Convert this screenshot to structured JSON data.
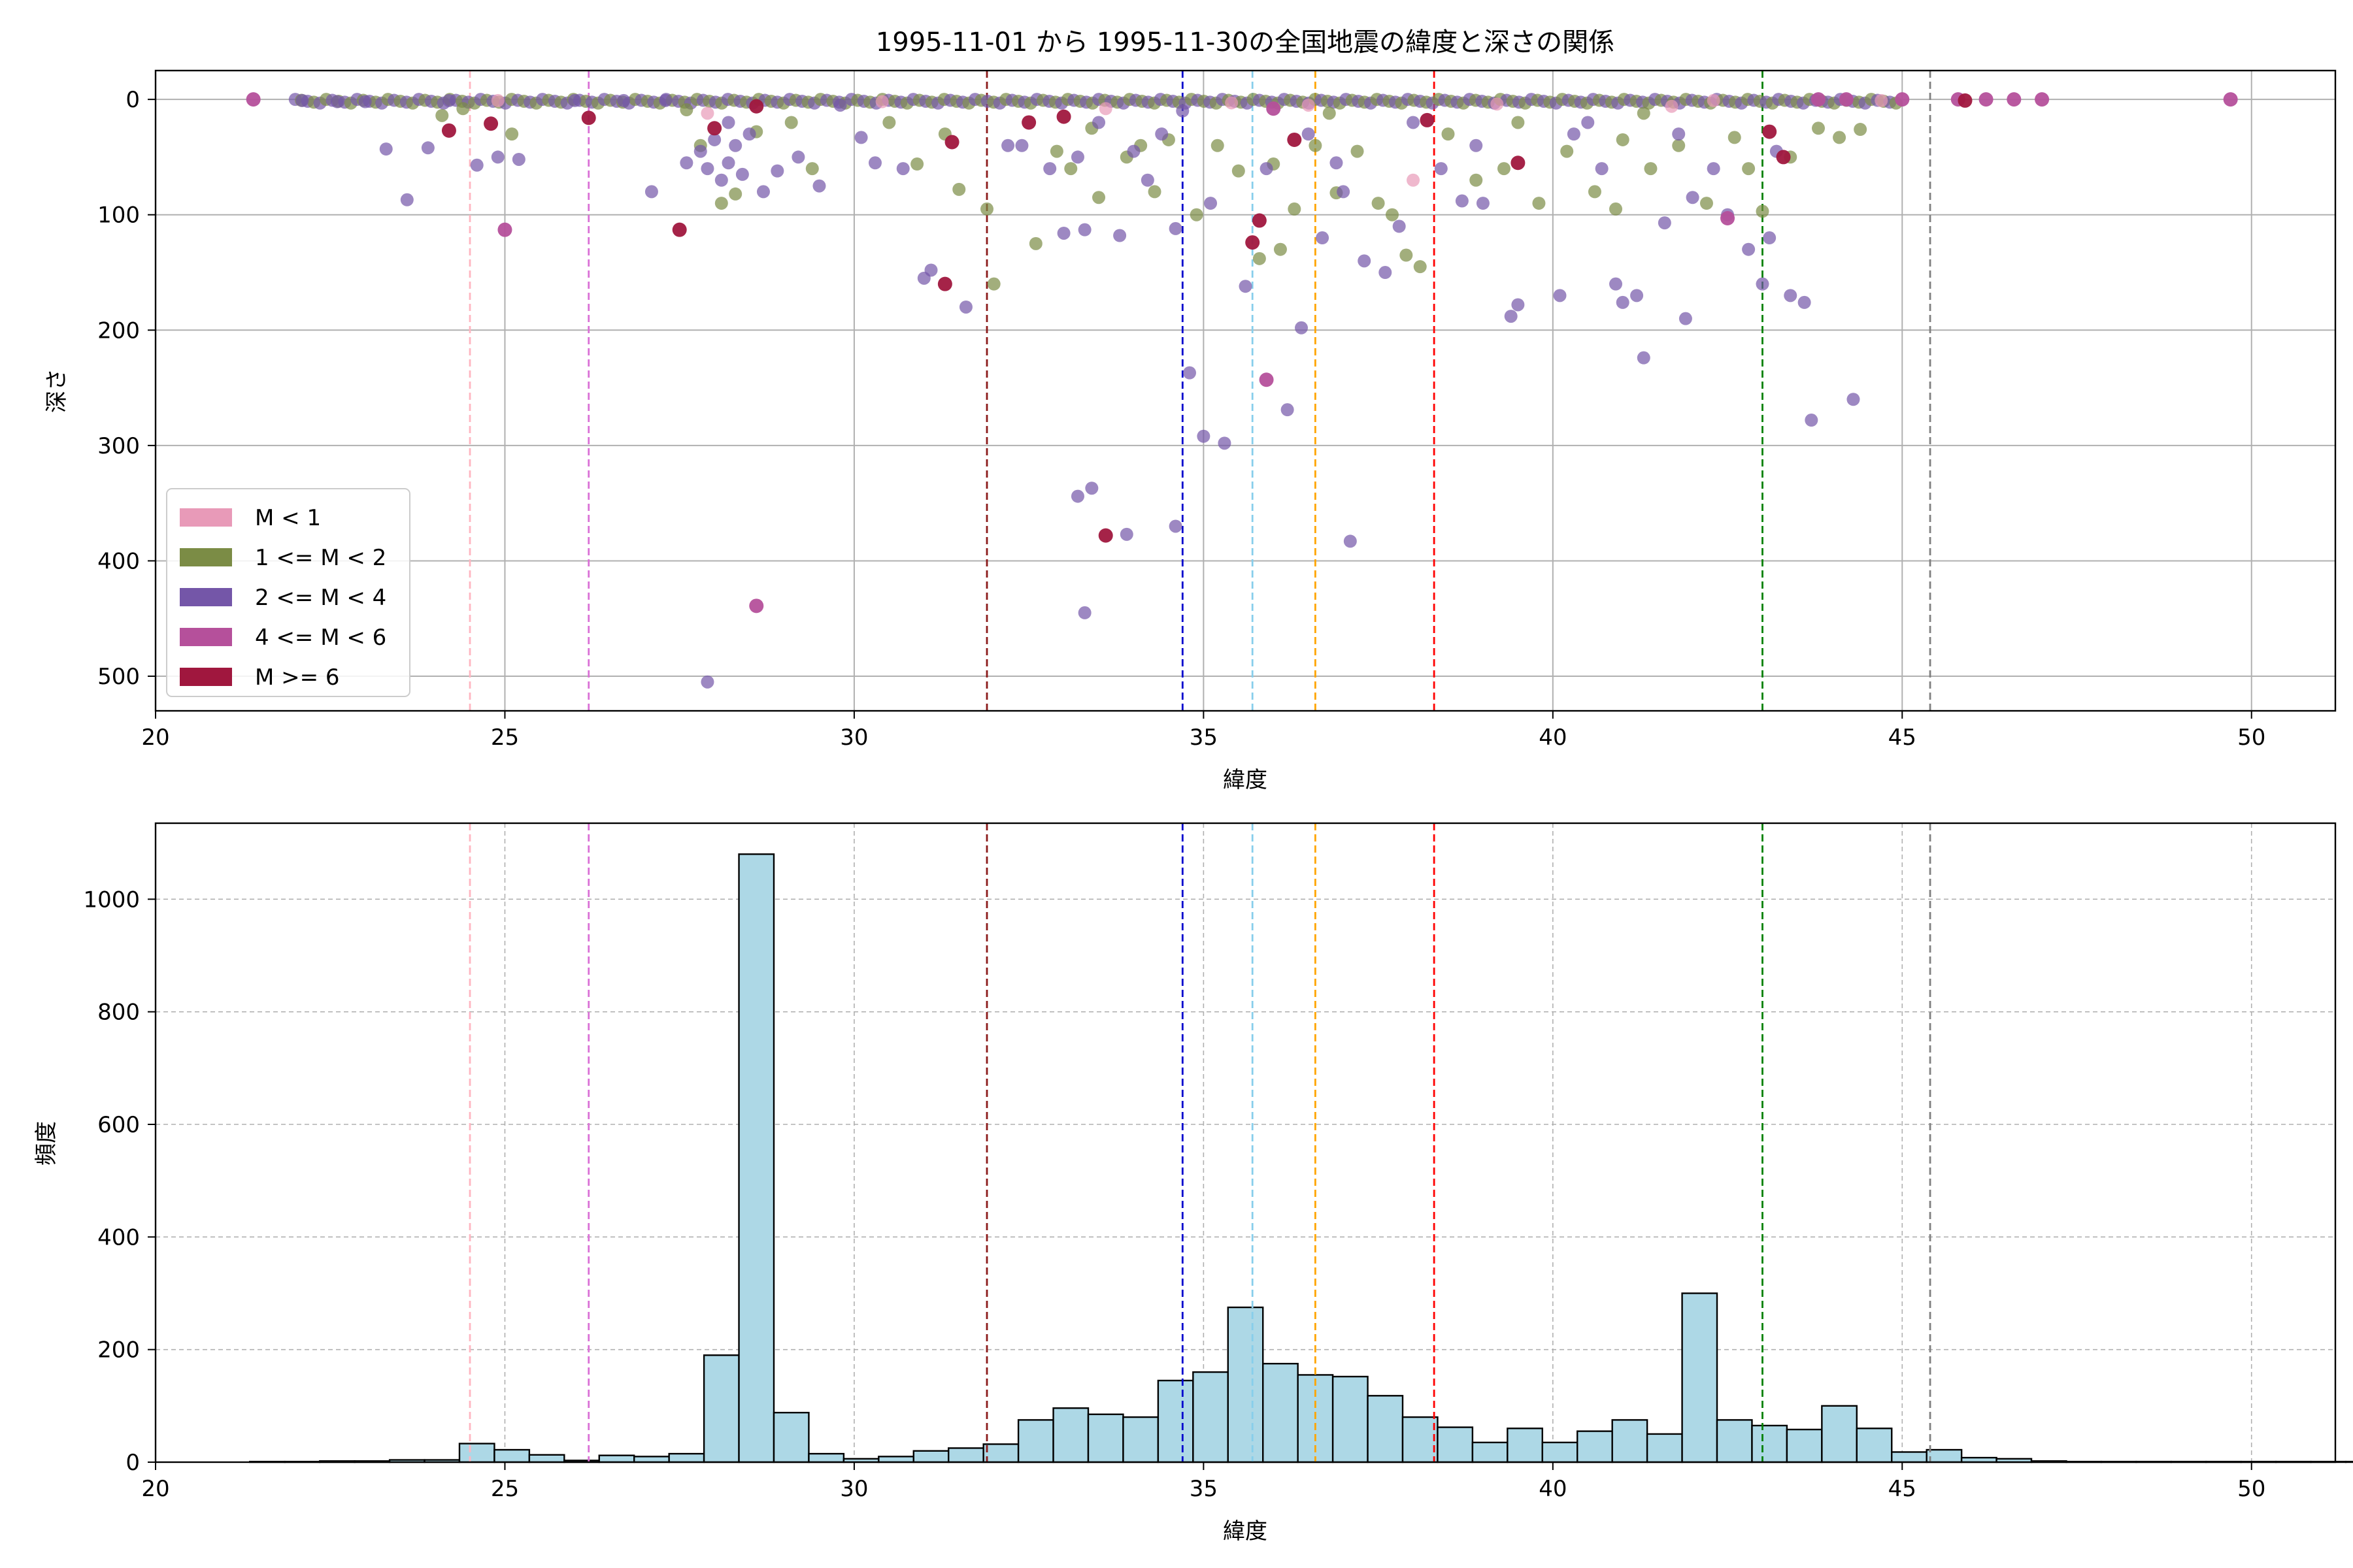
{
  "chart_data": [
    {
      "type": "scatter",
      "title": "1995-11-01 から 1995-11-30の全国地震の緯度と深さの関係",
      "xlabel": "緯度",
      "ylabel": "深さ",
      "xlim": [
        20,
        51.2
      ],
      "ylim": [
        530,
        -25
      ],
      "y_inverted": true,
      "xticks": [
        20,
        25,
        30,
        35,
        40,
        45,
        50
      ],
      "yticks": [
        0,
        100,
        200,
        300,
        400,
        500
      ],
      "grid": true,
      "legend_position": "lower-left",
      "legend": [
        {
          "label": "M < 1",
          "color": "#e89ab8"
        },
        {
          "label": "1 <= M < 2",
          "color": "#7b8c45"
        },
        {
          "label": "2 <= M < 4",
          "color": "#7456a8"
        },
        {
          "label": "4 <= M < 6",
          "color": "#b5509b"
        },
        {
          "label": "M >= 6",
          "color": "#a0173e"
        }
      ],
      "reference_lines_x": [
        {
          "x": 24.5,
          "color": "#ffb6c1"
        },
        {
          "x": 26.2,
          "color": "#da70d6"
        },
        {
          "x": 31.9,
          "color": "#8b1a1a"
        },
        {
          "x": 34.7,
          "color": "#0000cd"
        },
        {
          "x": 35.7,
          "color": "#87ceeb"
        },
        {
          "x": 36.6,
          "color": "#ffa500"
        },
        {
          "x": 38.3,
          "color": "#ff0000"
        },
        {
          "x": 43.0,
          "color": "#008000"
        },
        {
          "x": 45.4,
          "color": "#808080"
        }
      ],
      "series": [
        {
          "class": 0,
          "points": [
            [
              24.9,
              1
            ],
            [
              27.9,
              12
            ],
            [
              33.6,
              8
            ],
            [
              35.4,
              3
            ],
            [
              38.0,
              70
            ],
            [
              39.2,
              4
            ],
            [
              41.7,
              6
            ],
            [
              42.3,
              1
            ],
            [
              44.7,
              1
            ],
            [
              36.5,
              5
            ],
            [
              30.4,
              2
            ]
          ]
        },
        {
          "class": 1,
          "points": [
            [
              24.1,
              14
            ],
            [
              24.4,
              8
            ],
            [
              25.1,
              30
            ],
            [
              27.6,
              9
            ],
            [
              27.8,
              40
            ],
            [
              28.1,
              90
            ],
            [
              28.3,
              82
            ],
            [
              28.6,
              28
            ],
            [
              29.1,
              20
            ],
            [
              30.5,
              20
            ],
            [
              30.9,
              56
            ],
            [
              31.3,
              30
            ],
            [
              31.9,
              95
            ],
            [
              32.0,
              160
            ],
            [
              32.6,
              125
            ],
            [
              32.9,
              45
            ],
            [
              33.1,
              60
            ],
            [
              33.4,
              25
            ],
            [
              33.9,
              50
            ],
            [
              34.1,
              40
            ],
            [
              34.5,
              35
            ],
            [
              34.9,
              100
            ],
            [
              35.2,
              40
            ],
            [
              35.5,
              62
            ],
            [
              35.8,
              138
            ],
            [
              36.0,
              56
            ],
            [
              36.3,
              95
            ],
            [
              36.6,
              40
            ],
            [
              36.9,
              81
            ],
            [
              37.2,
              45
            ],
            [
              37.5,
              90
            ],
            [
              37.9,
              135
            ],
            [
              38.1,
              145
            ],
            [
              38.5,
              30
            ],
            [
              38.9,
              70
            ],
            [
              39.3,
              60
            ],
            [
              39.8,
              90
            ],
            [
              40.2,
              45
            ],
            [
              40.6,
              80
            ],
            [
              41.0,
              35
            ],
            [
              41.4,
              60
            ],
            [
              41.8,
              40
            ],
            [
              42.2,
              90
            ],
            [
              42.6,
              33
            ],
            [
              43.0,
              97
            ],
            [
              43.4,
              50
            ],
            [
              43.8,
              25
            ],
            [
              44.1,
              33
            ],
            [
              44.4,
              26
            ],
            [
              34.3,
              80
            ],
            [
              36.1,
              130
            ],
            [
              37.7,
              100
            ],
            [
              40.9,
              95
            ],
            [
              42.8,
              60
            ],
            [
              33.5,
              85
            ],
            [
              36.8,
              12
            ],
            [
              39.5,
              20
            ],
            [
              41.3,
              12
            ],
            [
              29.4,
              60
            ],
            [
              31.5,
              78
            ]
          ]
        },
        {
          "class": 2,
          "points": [
            [
              22.1,
              1
            ],
            [
              22.6,
              2
            ],
            [
              23.0,
              2
            ],
            [
              23.3,
              43
            ],
            [
              23.6,
              87
            ],
            [
              23.9,
              42
            ],
            [
              24.2,
              1
            ],
            [
              24.6,
              57
            ],
            [
              24.9,
              50
            ],
            [
              25.2,
              52
            ],
            [
              26.0,
              1
            ],
            [
              26.7,
              1
            ],
            [
              27.1,
              80
            ],
            [
              27.3,
              1
            ],
            [
              27.6,
              55
            ],
            [
              27.8,
              45
            ],
            [
              27.9,
              60
            ],
            [
              28.0,
              35
            ],
            [
              28.1,
              70
            ],
            [
              28.2,
              55
            ],
            [
              28.3,
              40
            ],
            [
              28.4,
              65
            ],
            [
              28.5,
              30
            ],
            [
              28.7,
              80
            ],
            [
              28.9,
              62
            ],
            [
              29.2,
              50
            ],
            [
              29.5,
              75
            ],
            [
              29.8,
              5
            ],
            [
              30.1,
              33
            ],
            [
              30.3,
              55
            ],
            [
              30.7,
              60
            ],
            [
              31.0,
              155
            ],
            [
              31.1,
              148
            ],
            [
              31.6,
              180
            ],
            [
              32.2,
              40
            ],
            [
              32.8,
              60
            ],
            [
              33.0,
              116
            ],
            [
              33.2,
              50
            ],
            [
              33.3,
              113
            ],
            [
              33.5,
              20
            ],
            [
              33.8,
              118
            ],
            [
              34.0,
              45
            ],
            [
              34.2,
              70
            ],
            [
              34.4,
              30
            ],
            [
              34.6,
              112
            ],
            [
              34.8,
              237
            ],
            [
              35.0,
              292
            ],
            [
              35.3,
              298
            ],
            [
              35.6,
              162
            ],
            [
              35.9,
              60
            ],
            [
              36.2,
              269
            ],
            [
              36.4,
              198
            ],
            [
              36.5,
              30
            ],
            [
              36.7,
              120
            ],
            [
              37.0,
              80
            ],
            [
              37.1,
              383
            ],
            [
              37.3,
              140
            ],
            [
              37.6,
              150
            ],
            [
              38.0,
              20
            ],
            [
              38.4,
              60
            ],
            [
              38.7,
              88
            ],
            [
              39.0,
              90
            ],
            [
              39.4,
              188
            ],
            [
              39.5,
              178
            ],
            [
              40.1,
              170
            ],
            [
              40.3,
              30
            ],
            [
              40.7,
              60
            ],
            [
              40.9,
              160
            ],
            [
              41.0,
              176
            ],
            [
              41.2,
              170
            ],
            [
              41.3,
              224
            ],
            [
              41.6,
              107
            ],
            [
              41.9,
              190
            ],
            [
              42.0,
              85
            ],
            [
              42.3,
              60
            ],
            [
              42.5,
              100
            ],
            [
              42.8,
              130
            ],
            [
              43.0,
              160
            ],
            [
              43.2,
              45
            ],
            [
              43.4,
              170
            ],
            [
              43.6,
              176
            ],
            [
              43.7,
              278
            ],
            [
              44.3,
              260
            ],
            [
              33.2,
              344
            ],
            [
              33.3,
              445
            ],
            [
              33.4,
              337
            ],
            [
              33.9,
              377
            ],
            [
              34.6,
              370
            ],
            [
              27.9,
              505
            ],
            [
              32.4,
              40
            ],
            [
              34.7,
              10
            ],
            [
              35.1,
              90
            ],
            [
              36.9,
              55
            ],
            [
              38.9,
              40
            ],
            [
              40.5,
              20
            ],
            [
              41.8,
              30
            ],
            [
              43.1,
              120
            ],
            [
              28.2,
              20
            ],
            [
              37.8,
              110
            ]
          ]
        },
        {
          "class": 3,
          "points": [
            [
              21.4,
              0
            ],
            [
              25.0,
              113
            ],
            [
              28.6,
              439
            ],
            [
              35.9,
              243
            ],
            [
              42.5,
              103
            ],
            [
              44.2,
              0
            ],
            [
              45.0,
              0
            ],
            [
              45.8,
              0
            ],
            [
              46.2,
              0
            ],
            [
              46.6,
              0
            ],
            [
              47.0,
              0
            ],
            [
              49.7,
              0
            ],
            [
              43.8,
              0
            ],
            [
              36.0,
              8
            ]
          ]
        },
        {
          "class": 4,
          "points": [
            [
              24.2,
              27
            ],
            [
              24.8,
              21
            ],
            [
              26.2,
              16
            ],
            [
              27.5,
              113
            ],
            [
              28.0,
              25
            ],
            [
              28.6,
              6
            ],
            [
              31.3,
              160
            ],
            [
              31.4,
              37
            ],
            [
              32.5,
              20
            ],
            [
              33.0,
              15
            ],
            [
              33.6,
              378
            ],
            [
              35.7,
              124
            ],
            [
              35.8,
              105
            ],
            [
              36.3,
              35
            ],
            [
              38.2,
              18
            ],
            [
              39.5,
              55
            ],
            [
              43.1,
              28
            ],
            [
              43.3,
              50
            ],
            [
              45.9,
              1
            ]
          ]
        }
      ]
    },
    {
      "type": "bar",
      "xlabel": "緯度",
      "ylabel": "頻度",
      "xlim": [
        20,
        51.2
      ],
      "ylim": [
        0,
        1135
      ],
      "xticks": [
        20,
        25,
        30,
        35,
        40,
        45,
        50
      ],
      "yticks": [
        0,
        200,
        400,
        600,
        800,
        1000
      ],
      "grid": true,
      "bin_start": 21.35,
      "bin_width": 0.5,
      "counts": [
        1,
        1,
        2,
        2,
        4,
        4,
        33,
        22,
        13,
        3,
        12,
        10,
        15,
        190,
        1080,
        88,
        15,
        6,
        10,
        20,
        25,
        32,
        75,
        96,
        85,
        80,
        145,
        160,
        275,
        175,
        155,
        152,
        118,
        80,
        62,
        35,
        60,
        35,
        55,
        75,
        50,
        300,
        75,
        65,
        58,
        100,
        60,
        18,
        22,
        8,
        6,
        2,
        1,
        1,
        1,
        1,
        1,
        1,
        1,
        1,
        1
      ],
      "reference_lines_x": [
        {
          "x": 24.5,
          "color": "#ffb6c1"
        },
        {
          "x": 26.2,
          "color": "#da70d6"
        },
        {
          "x": 31.9,
          "color": "#8b1a1a"
        },
        {
          "x": 34.7,
          "color": "#0000cd"
        },
        {
          "x": 35.7,
          "color": "#87ceeb"
        },
        {
          "x": 36.6,
          "color": "#ffa500"
        },
        {
          "x": 38.3,
          "color": "#ff0000"
        },
        {
          "x": 43.0,
          "color": "#008000"
        },
        {
          "x": 45.4,
          "color": "#808080"
        }
      ]
    }
  ]
}
